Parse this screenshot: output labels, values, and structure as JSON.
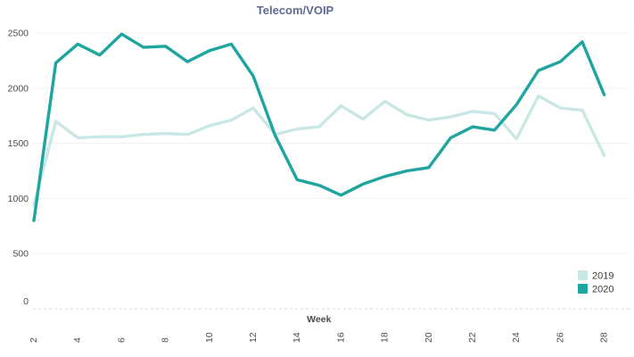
{
  "title": "Telecom/VOIP",
  "chart_data": {
    "type": "line",
    "title": "Telecom/VOIP",
    "xlabel": "Week",
    "ylabel": "",
    "x": [
      2,
      3,
      4,
      5,
      6,
      7,
      8,
      9,
      10,
      11,
      12,
      13,
      14,
      15,
      16,
      17,
      18,
      19,
      20,
      21,
      22,
      23,
      24,
      25,
      26,
      27,
      28
    ],
    "x_tick_labels": [
      2,
      4,
      6,
      8,
      10,
      12,
      14,
      16,
      18,
      20,
      22,
      24,
      26,
      28
    ],
    "y_ticks": [
      0,
      500,
      1000,
      1500,
      2000,
      2500
    ],
    "ylim": [
      0,
      2600
    ],
    "grid": "horizontal",
    "legend_position": "bottom-right",
    "series": [
      {
        "name": "2019",
        "color": "#c8e7e5",
        "values": [
          940,
          1700,
          1550,
          1560,
          1560,
          1580,
          1590,
          1580,
          1660,
          1710,
          1820,
          1580,
          1630,
          1650,
          1840,
          1720,
          1880,
          1760,
          1710,
          1740,
          1790,
          1770,
          1540,
          1930,
          1820,
          1800,
          1390
        ]
      },
      {
        "name": "2020",
        "color": "#1ea5a0",
        "values": [
          800,
          2230,
          2400,
          2300,
          2490,
          2370,
          2380,
          2240,
          2340,
          2400,
          2110,
          1570,
          1170,
          1120,
          1030,
          1130,
          1200,
          1250,
          1280,
          1550,
          1650,
          1620,
          1850,
          2160,
          2240,
          2420,
          1940
        ]
      }
    ]
  },
  "legend": {
    "items": [
      {
        "label": "2019",
        "color": "#c8e7e5"
      },
      {
        "label": "2020",
        "color": "#1ea5a0"
      }
    ]
  },
  "colors": {
    "title_text": "#5d6c92",
    "tick_text": "#4d4d4d",
    "axis_title_text": "#4d4d4d",
    "legend_text": "#3c3c3c",
    "gridline": "#f1f1f1",
    "axis_line": "#d9d9d9",
    "background": "#ffffff"
  }
}
